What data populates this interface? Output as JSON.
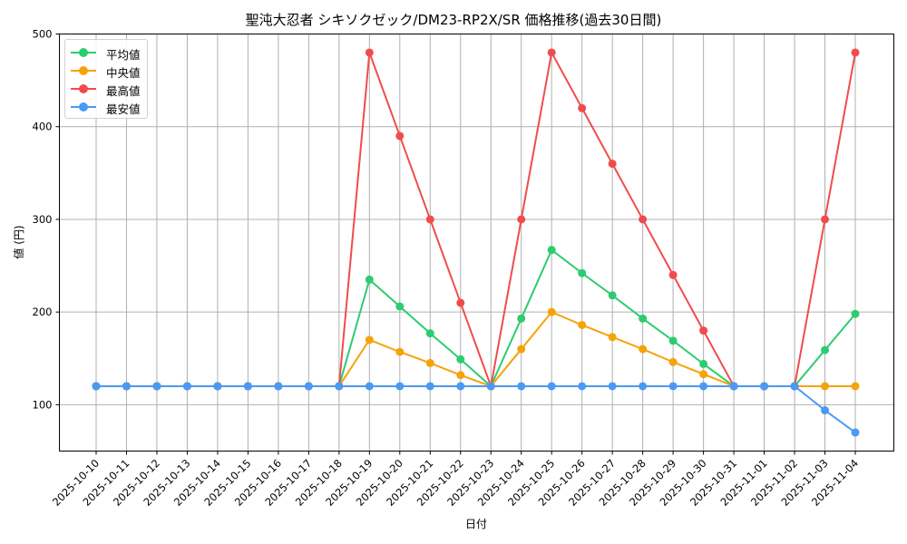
{
  "chart_data": {
    "type": "line",
    "title": "聖沌大忍者 シキソクゼック/DM23-RP2X/SR 価格推移(過去30日間)",
    "xlabel": "日付",
    "ylabel": "値 (円)",
    "ylim": [
      50,
      500
    ],
    "yticks": [
      100,
      200,
      300,
      400,
      500
    ],
    "grid": true,
    "legend_position": "upper left",
    "x": [
      "2025-10-10",
      "2025-10-11",
      "2025-10-12",
      "2025-10-13",
      "2025-10-14",
      "2025-10-15",
      "2025-10-16",
      "2025-10-17",
      "2025-10-18",
      "2025-10-19",
      "2025-10-20",
      "2025-10-21",
      "2025-10-22",
      "2025-10-23",
      "2025-10-24",
      "2025-10-25",
      "2025-10-26",
      "2025-10-27",
      "2025-10-28",
      "2025-10-29",
      "2025-10-30",
      "2025-10-31",
      "2025-11-01",
      "2025-11-02",
      "2025-11-03",
      "2025-11-04"
    ],
    "series": [
      {
        "name": "平均値",
        "color": "#2ecc71",
        "values": [
          120,
          120,
          120,
          120,
          120,
          120,
          120,
          120,
          120,
          235,
          206,
          177,
          149,
          120,
          193,
          267,
          242,
          218,
          193,
          169,
          144,
          120,
          120,
          120,
          159,
          198
        ]
      },
      {
        "name": "中央値",
        "color": "#f5a30a",
        "values": [
          120,
          120,
          120,
          120,
          120,
          120,
          120,
          120,
          120,
          170,
          157,
          145,
          132,
          120,
          160,
          200,
          186,
          173,
          160,
          146,
          133,
          120,
          120,
          120,
          120,
          120
        ]
      },
      {
        "name": "最高値",
        "color": "#f04c4c",
        "values": [
          120,
          120,
          120,
          120,
          120,
          120,
          120,
          120,
          120,
          480,
          390,
          300,
          210,
          120,
          300,
          480,
          420,
          360,
          300,
          240,
          180,
          120,
          120,
          120,
          300,
          480
        ]
      },
      {
        "name": "最安値",
        "color": "#4a9af5",
        "values": [
          120,
          120,
          120,
          120,
          120,
          120,
          120,
          120,
          120,
          120,
          120,
          120,
          120,
          120,
          120,
          120,
          120,
          120,
          120,
          120,
          120,
          120,
          120,
          120,
          94,
          70
        ]
      }
    ]
  }
}
